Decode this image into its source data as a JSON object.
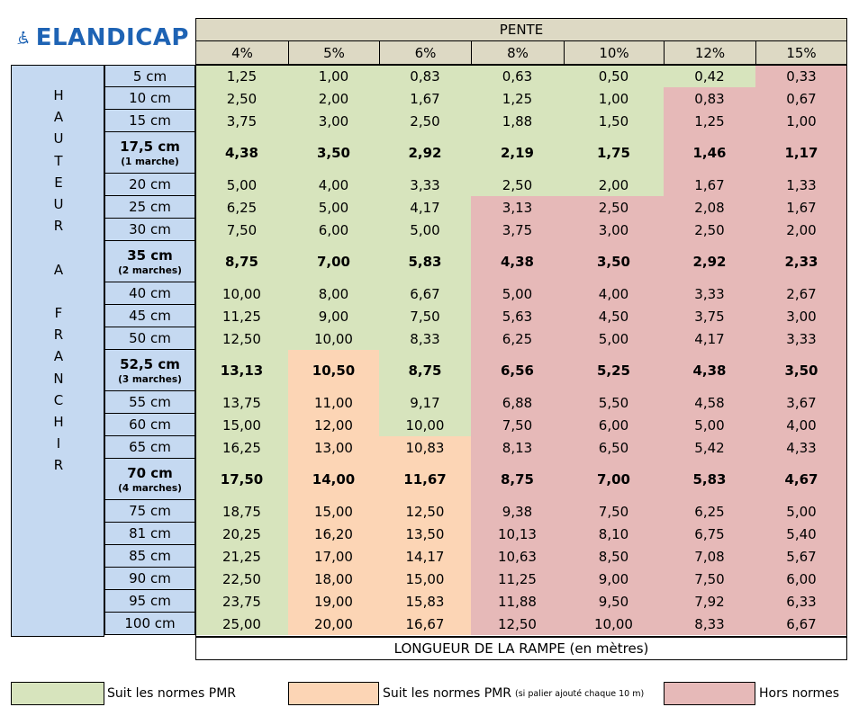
{
  "logo": {
    "text": "ELANDICAP",
    "icon": "wheelchair-icon",
    "color": "#1e63b4"
  },
  "header": {
    "pente_label": "PENTE",
    "slopes": [
      "4%",
      "5%",
      "6%",
      "8%",
      "10%",
      "12%",
      "15%"
    ]
  },
  "vertical_label": [
    "H",
    "A",
    "U",
    "T",
    "E",
    "U",
    "R",
    "",
    "A",
    "",
    "F",
    "R",
    "A",
    "N",
    "C",
    "H",
    "I",
    "R"
  ],
  "footer_label": "LONGUEUR DE LA RAMPE (en mètres)",
  "colors": {
    "green": "#d7e4bd",
    "orange": "#fcd5b5",
    "red": "#e6b9b8",
    "blue": "#c5d9f1",
    "header": "#ddd9c4"
  },
  "rows": [
    {
      "height": "5 cm",
      "values": [
        "1,25",
        "1,00",
        "0,83",
        "0,63",
        "0,50",
        "0,42",
        "0,33"
      ],
      "status": [
        "g",
        "g",
        "g",
        "g",
        "g",
        "g",
        "r"
      ]
    },
    {
      "height": "10 cm",
      "values": [
        "2,50",
        "2,00",
        "1,67",
        "1,25",
        "1,00",
        "0,83",
        "0,67"
      ],
      "status": [
        "g",
        "g",
        "g",
        "g",
        "g",
        "r",
        "r"
      ]
    },
    {
      "height": "15 cm",
      "values": [
        "3,75",
        "3,00",
        "2,50",
        "1,88",
        "1,50",
        "1,25",
        "1,00"
      ],
      "status": [
        "g",
        "g",
        "g",
        "g",
        "g",
        "r",
        "r"
      ]
    },
    {
      "height": "17,5 cm",
      "sub": "(1 marche)",
      "bold": true,
      "values": [
        "4,38",
        "3,50",
        "2,92",
        "2,19",
        "1,75",
        "1,46",
        "1,17"
      ],
      "status": [
        "g",
        "g",
        "g",
        "g",
        "g",
        "r",
        "r"
      ]
    },
    {
      "height": "20 cm",
      "values": [
        "5,00",
        "4,00",
        "3,33",
        "2,50",
        "2,00",
        "1,67",
        "1,33"
      ],
      "status": [
        "g",
        "g",
        "g",
        "g",
        "g",
        "r",
        "r"
      ]
    },
    {
      "height": "25 cm",
      "values": [
        "6,25",
        "5,00",
        "4,17",
        "3,13",
        "2,50",
        "2,08",
        "1,67"
      ],
      "status": [
        "g",
        "g",
        "g",
        "r",
        "r",
        "r",
        "r"
      ]
    },
    {
      "height": "30 cm",
      "values": [
        "7,50",
        "6,00",
        "5,00",
        "3,75",
        "3,00",
        "2,50",
        "2,00"
      ],
      "status": [
        "g",
        "g",
        "g",
        "r",
        "r",
        "r",
        "r"
      ]
    },
    {
      "height": "35 cm",
      "sub": "(2 marches)",
      "bold": true,
      "values": [
        "8,75",
        "7,00",
        "5,83",
        "4,38",
        "3,50",
        "2,92",
        "2,33"
      ],
      "status": [
        "g",
        "g",
        "g",
        "r",
        "r",
        "r",
        "r"
      ]
    },
    {
      "height": "40 cm",
      "values": [
        "10,00",
        "8,00",
        "6,67",
        "5,00",
        "4,00",
        "3,33",
        "2,67"
      ],
      "status": [
        "g",
        "g",
        "g",
        "r",
        "r",
        "r",
        "r"
      ]
    },
    {
      "height": "45 cm",
      "values": [
        "11,25",
        "9,00",
        "7,50",
        "5,63",
        "4,50",
        "3,75",
        "3,00"
      ],
      "status": [
        "g",
        "g",
        "g",
        "r",
        "r",
        "r",
        "r"
      ]
    },
    {
      "height": "50 cm",
      "values": [
        "12,50",
        "10,00",
        "8,33",
        "6,25",
        "5,00",
        "4,17",
        "3,33"
      ],
      "status": [
        "g",
        "g",
        "g",
        "r",
        "r",
        "r",
        "r"
      ]
    },
    {
      "height": "52,5 cm",
      "sub": "(3 marches)",
      "bold": true,
      "values": [
        "13,13",
        "10,50",
        "8,75",
        "6,56",
        "5,25",
        "4,38",
        "3,50"
      ],
      "status": [
        "g",
        "o",
        "g",
        "r",
        "r",
        "r",
        "r"
      ]
    },
    {
      "height": "55 cm",
      "values": [
        "13,75",
        "11,00",
        "9,17",
        "6,88",
        "5,50",
        "4,58",
        "3,67"
      ],
      "status": [
        "g",
        "o",
        "g",
        "r",
        "r",
        "r",
        "r"
      ]
    },
    {
      "height": "60 cm",
      "values": [
        "15,00",
        "12,00",
        "10,00",
        "7,50",
        "6,00",
        "5,00",
        "4,00"
      ],
      "status": [
        "g",
        "o",
        "g",
        "r",
        "r",
        "r",
        "r"
      ]
    },
    {
      "height": "65 cm",
      "values": [
        "16,25",
        "13,00",
        "10,83",
        "8,13",
        "6,50",
        "5,42",
        "4,33"
      ],
      "status": [
        "g",
        "o",
        "o",
        "r",
        "r",
        "r",
        "r"
      ]
    },
    {
      "height": "70 cm",
      "sub": "(4 marches)",
      "bold": true,
      "values": [
        "17,50",
        "14,00",
        "11,67",
        "8,75",
        "7,00",
        "5,83",
        "4,67"
      ],
      "status": [
        "g",
        "o",
        "o",
        "r",
        "r",
        "r",
        "r"
      ]
    },
    {
      "height": "75 cm",
      "values": [
        "18,75",
        "15,00",
        "12,50",
        "9,38",
        "7,50",
        "6,25",
        "5,00"
      ],
      "status": [
        "g",
        "o",
        "o",
        "r",
        "r",
        "r",
        "r"
      ]
    },
    {
      "height": "81 cm",
      "values": [
        "20,25",
        "16,20",
        "13,50",
        "10,13",
        "8,10",
        "6,75",
        "5,40"
      ],
      "status": [
        "g",
        "o",
        "o",
        "r",
        "r",
        "r",
        "r"
      ]
    },
    {
      "height": "85 cm",
      "values": [
        "21,25",
        "17,00",
        "14,17",
        "10,63",
        "8,50",
        "7,08",
        "5,67"
      ],
      "status": [
        "g",
        "o",
        "o",
        "r",
        "r",
        "r",
        "r"
      ]
    },
    {
      "height": "90 cm",
      "values": [
        "22,50",
        "18,00",
        "15,00",
        "11,25",
        "9,00",
        "7,50",
        "6,00"
      ],
      "status": [
        "g",
        "o",
        "o",
        "r",
        "r",
        "r",
        "r"
      ]
    },
    {
      "height": "95 cm",
      "values": [
        "23,75",
        "19,00",
        "15,83",
        "11,88",
        "9,50",
        "7,92",
        "6,33"
      ],
      "status": [
        "g",
        "o",
        "o",
        "r",
        "r",
        "r",
        "r"
      ]
    },
    {
      "height": "100 cm",
      "values": [
        "25,00",
        "20,00",
        "16,67",
        "12,50",
        "10,00",
        "8,33",
        "6,67"
      ],
      "status": [
        "g",
        "o",
        "o",
        "r",
        "r",
        "r",
        "r"
      ]
    }
  ],
  "legend": [
    {
      "text": "Suit les normes PMR",
      "color": "green"
    },
    {
      "text": "Suit les normes PMR",
      "small": "(si palier ajouté chaque 10 m)",
      "color": "orange"
    },
    {
      "text": "Hors normes",
      "color": "red"
    }
  ]
}
